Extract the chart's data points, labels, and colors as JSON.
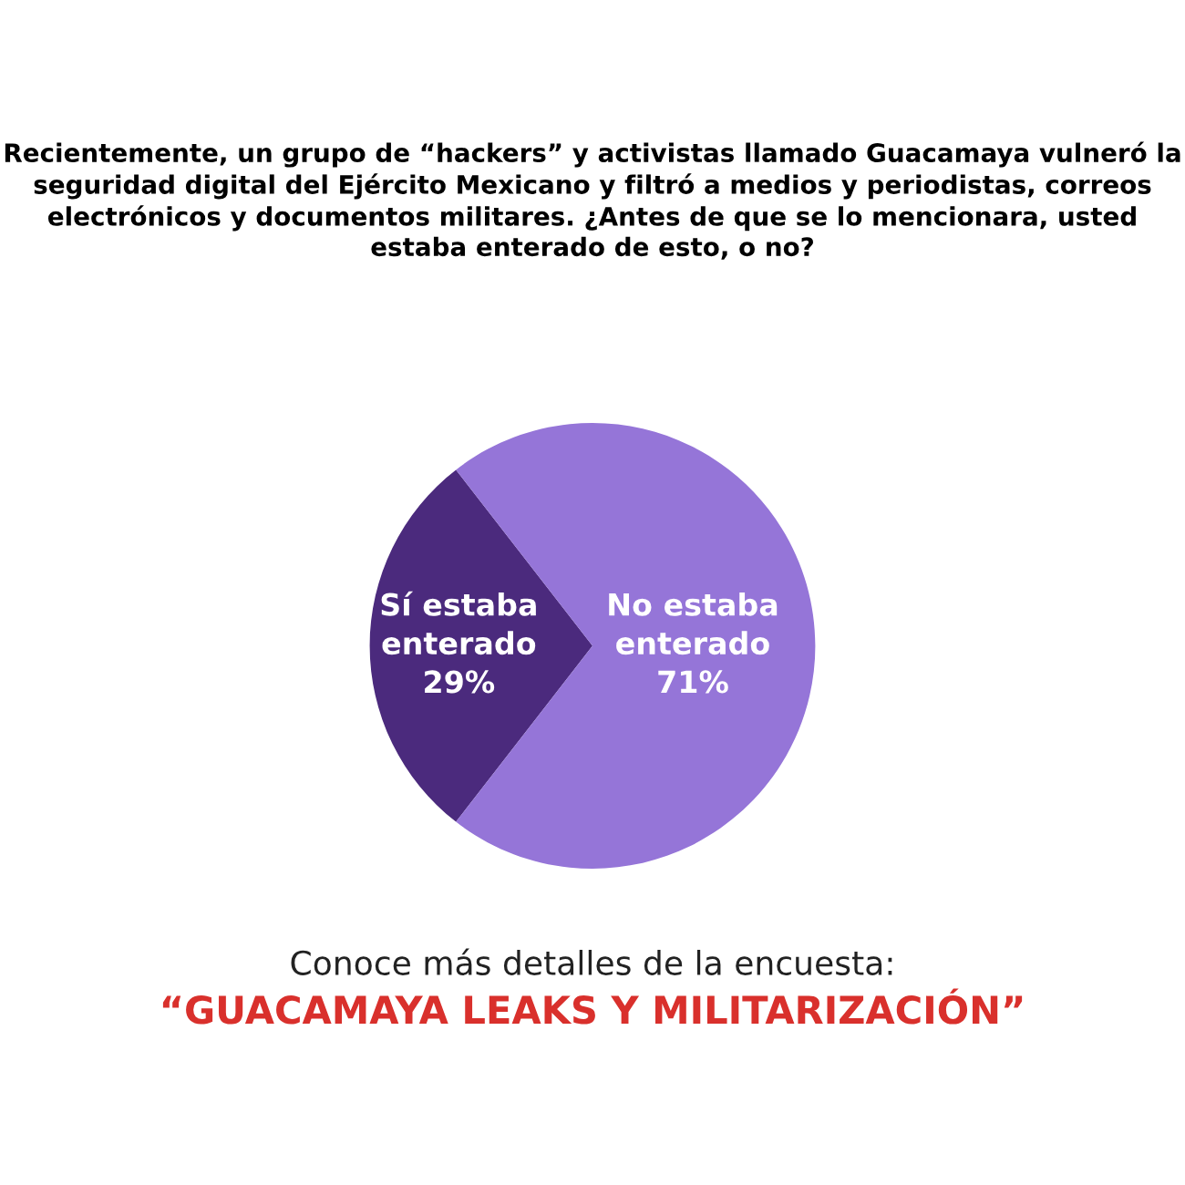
{
  "chart_data": {
    "type": "pie",
    "title": "Recientemente, un grupo de “hackers” y activistas llamado Guacamaya vulneró la seguridad digital del Ejército Mexicano y filtró a medios y periodistas, correos electrónicos y documentos militares. ¿Antes de que se lo mencionara, usted estaba enterado de esto, o no?",
    "categories": [
      "Sí estaba enterado",
      "No estaba enterado"
    ],
    "values": [
      29,
      71
    ],
    "colors": [
      "#4b2a7d",
      "#9575d8"
    ],
    "value_labels": [
      "29%",
      "71%"
    ],
    "annotations": [
      "Conoce más detalles de la encuesta:",
      "“GUACAMAYA LEAKS Y MILITARIZACIÓN”"
    ]
  }
}
